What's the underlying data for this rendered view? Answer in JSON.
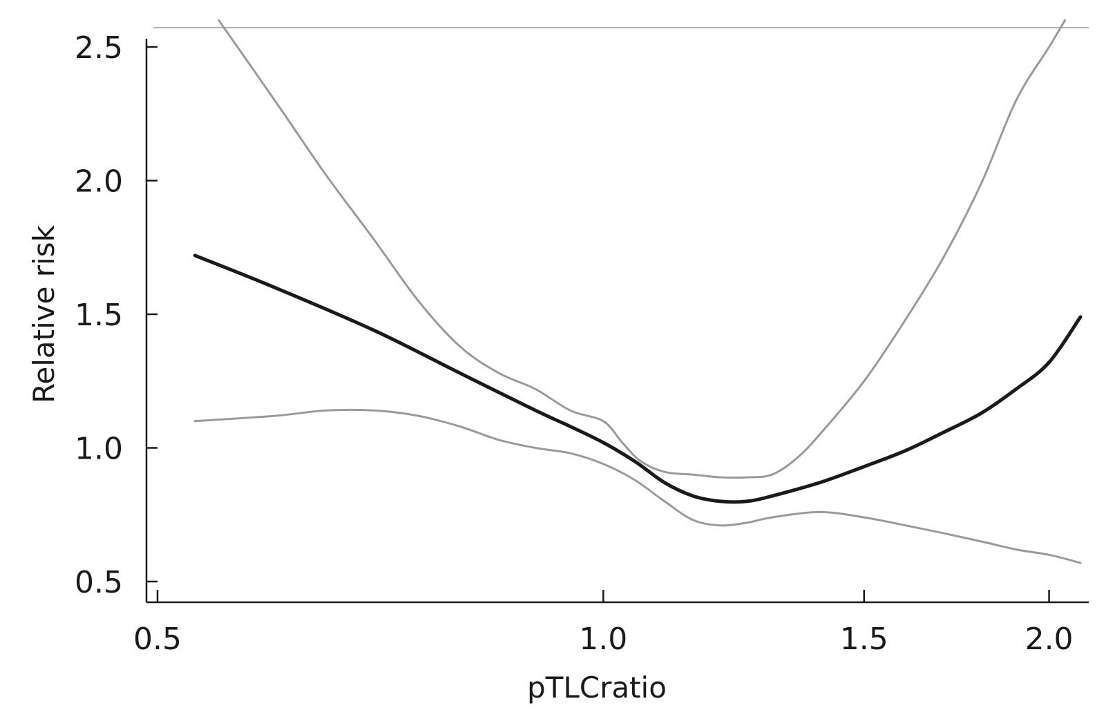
{
  "chart_data": {
    "type": "line",
    "title": "",
    "xlabel": "pTLCratio",
    "ylabel": "Relative risk",
    "xscale": "log",
    "xlim": [
      0.49,
      2.15
    ],
    "ylim": [
      0.44,
      2.6
    ],
    "xticks": [
      0.5,
      1.0,
      1.5,
      2.0
    ],
    "xtick_labels": [
      "0.5",
      "1.0",
      "1.5",
      "2.0"
    ],
    "yticks": [
      0.5,
      1.0,
      1.5,
      2.0,
      2.5
    ],
    "ytick_labels": [
      "0.5",
      "1.0",
      "1.5",
      "2.0",
      "2.5"
    ],
    "grid": false,
    "legend": "none",
    "colors": {
      "estimate": "#1a1a1a",
      "ci": "#9a9a9a",
      "axis": "#1a1a1a",
      "frame_top": "#b0b0b0"
    },
    "series": [
      {
        "role": "estimate",
        "x": [
          0.53,
          0.6,
          0.7,
          0.8,
          0.9,
          0.95,
          1.0,
          1.05,
          1.1,
          1.15,
          1.2,
          1.25,
          1.3,
          1.4,
          1.5,
          1.6,
          1.7,
          1.8,
          1.9,
          2.0,
          2.1
        ],
        "y": [
          1.72,
          1.6,
          1.44,
          1.28,
          1.14,
          1.08,
          1.02,
          0.95,
          0.87,
          0.82,
          0.8,
          0.8,
          0.82,
          0.87,
          0.93,
          0.99,
          1.06,
          1.13,
          1.22,
          1.32,
          1.49
        ]
      },
      {
        "role": "ci_upper",
        "x": [
          0.55,
          0.6,
          0.65,
          0.7,
          0.75,
          0.8,
          0.85,
          0.9,
          0.95,
          1.0,
          1.03,
          1.06,
          1.1,
          1.15,
          1.2,
          1.25,
          1.3,
          1.35,
          1.4,
          1.5,
          1.6,
          1.7,
          1.8,
          1.9,
          2.0,
          2.05
        ],
        "y": [
          2.6,
          2.3,
          2.02,
          1.78,
          1.55,
          1.38,
          1.28,
          1.22,
          1.14,
          1.1,
          1.02,
          0.95,
          0.91,
          0.9,
          0.89,
          0.89,
          0.9,
          0.96,
          1.05,
          1.25,
          1.48,
          1.72,
          1.99,
          2.3,
          2.5,
          2.6
        ]
      },
      {
        "role": "ci_lower",
        "x": [
          0.53,
          0.6,
          0.65,
          0.7,
          0.75,
          0.8,
          0.85,
          0.9,
          0.95,
          1.0,
          1.05,
          1.1,
          1.15,
          1.2,
          1.25,
          1.3,
          1.4,
          1.5,
          1.6,
          1.7,
          1.8,
          1.9,
          2.0,
          2.1
        ],
        "y": [
          1.1,
          1.12,
          1.14,
          1.14,
          1.12,
          1.08,
          1.03,
          1.0,
          0.98,
          0.94,
          0.88,
          0.8,
          0.73,
          0.71,
          0.72,
          0.74,
          0.76,
          0.74,
          0.71,
          0.68,
          0.65,
          0.62,
          0.6,
          0.57
        ]
      }
    ]
  }
}
